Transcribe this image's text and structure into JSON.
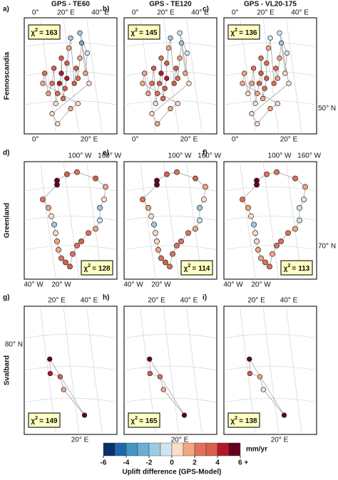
{
  "chi_symbol": "χ",
  "chi_power": "2",
  "chi_eq": "=",
  "rows": [
    {
      "label": "Fennoscandia",
      "lonlim": [
        -5,
        45
      ],
      "latlim": [
        50,
        73
      ],
      "top_ticks": [
        "0°",
        "20° E",
        "40° E"
      ],
      "bottom_ticks": [
        "0°",
        "20° E"
      ],
      "side_tick": "50° N",
      "stations": [
        [
          5,
          60
        ],
        [
          6,
          62
        ],
        [
          8,
          58
        ],
        [
          10,
          60
        ],
        [
          11,
          63
        ],
        [
          12,
          56
        ],
        [
          13,
          58
        ],
        [
          14,
          60
        ],
        [
          15,
          62
        ],
        [
          15,
          65
        ],
        [
          16,
          57
        ],
        [
          17,
          59
        ],
        [
          18,
          61
        ],
        [
          18,
          64
        ],
        [
          19,
          67
        ],
        [
          20,
          69
        ],
        [
          22,
          60
        ],
        [
          23,
          63
        ],
        [
          24,
          61
        ],
        [
          25,
          65
        ],
        [
          26,
          68
        ],
        [
          28,
          62
        ],
        [
          29,
          66
        ],
        [
          25,
          70
        ],
        [
          30,
          60
        ],
        [
          10,
          54
        ],
        [
          13,
          52
        ],
        [
          20,
          55
        ],
        [
          24,
          56
        ]
      ],
      "panels": [
        {
          "letter": "a)",
          "title": "GPS - TE60",
          "chi2": 163,
          "values": [
            1,
            2,
            1,
            2,
            3,
            0,
            2,
            4,
            4,
            3,
            2,
            3,
            4,
            3,
            1,
            -2,
            3,
            3,
            2,
            1,
            -3,
            1,
            -1,
            -2,
            0,
            0,
            0,
            1,
            0
          ]
        },
        {
          "letter": "b)",
          "title": "GPS - TE120",
          "chi2": 145,
          "values": [
            1,
            1,
            1,
            2,
            3,
            0,
            2,
            3,
            4,
            2,
            2,
            3,
            4,
            3,
            1,
            -2,
            3,
            3,
            2,
            1,
            -2,
            1,
            -1,
            -1,
            0,
            0,
            1,
            1,
            0
          ]
        },
        {
          "letter": "c)",
          "title": "GPS - VL20-175",
          "chi2": 136,
          "values": [
            1,
            1,
            0,
            1,
            2,
            0,
            1,
            3,
            3,
            2,
            1,
            2,
            3,
            2,
            1,
            -1,
            2,
            2,
            1,
            1,
            -2,
            0,
            -1,
            -1,
            0,
            0,
            0,
            1,
            0
          ]
        }
      ]
    },
    {
      "label": "Greenland",
      "lonlim": [
        -75,
        -10
      ],
      "latlim": [
        57,
        85
      ],
      "top_ticks": [
        "100° W",
        "160° W"
      ],
      "bottom_ticks": [
        "40° W",
        "20° W"
      ],
      "side_tick": "70° N",
      "stations": [
        [
          -43,
          60
        ],
        [
          -46,
          61
        ],
        [
          -49,
          62
        ],
        [
          -51,
          64
        ],
        [
          -52,
          66
        ],
        [
          -53,
          68
        ],
        [
          -54,
          70
        ],
        [
          -56,
          72
        ],
        [
          -58,
          74
        ],
        [
          -62,
          76
        ],
        [
          -52,
          79.5
        ],
        [
          -52,
          80.5
        ],
        [
          -45,
          82
        ],
        [
          -38,
          82.5
        ],
        [
          -25,
          81
        ],
        [
          -18,
          79
        ],
        [
          -19,
          76
        ],
        [
          -22,
          74
        ],
        [
          -22,
          71
        ],
        [
          -25,
          69
        ],
        [
          -30,
          68
        ],
        [
          -35,
          66
        ],
        [
          -38,
          65
        ],
        [
          -41,
          63
        ]
      ],
      "panels": [
        {
          "letter": "d)",
          "chi2": 128,
          "values": [
            3,
            3,
            2,
            1,
            1,
            0,
            -2,
            0,
            1,
            2,
            5,
            6,
            3,
            2,
            3,
            1,
            0,
            -2,
            -1,
            1,
            2,
            3,
            2,
            2
          ]
        },
        {
          "letter": "e)",
          "chi2": 114,
          "values": [
            2,
            3,
            2,
            1,
            0,
            0,
            -2,
            0,
            1,
            2,
            5,
            6,
            3,
            2,
            3,
            1,
            0,
            -2,
            -1,
            1,
            2,
            2,
            2,
            2
          ]
        },
        {
          "letter": "f)",
          "chi2": 113,
          "values": [
            2,
            2,
            1,
            1,
            0,
            0,
            -2,
            0,
            1,
            2,
            5,
            6,
            2,
            2,
            2,
            1,
            0,
            -1,
            -1,
            1,
            2,
            2,
            2,
            1
          ]
        }
      ]
    },
    {
      "label": "Svalbard",
      "lonlim": [
        5,
        45
      ],
      "latlim": [
        74,
        82
      ],
      "top_ticks": [
        "20° E",
        "40° E"
      ],
      "bottom_ticks": [
        "20° E"
      ],
      "side_tick": "80° N",
      "stations": [
        [
          16,
          78.7
        ],
        [
          16.2,
          77.8
        ],
        [
          20.5,
          77.6
        ],
        [
          22,
          76.8
        ],
        [
          31,
          75.2
        ]
      ],
      "panels": [
        {
          "letter": "g)",
          "chi2": 149,
          "values": [
            6,
            4,
            3,
            1,
            6
          ]
        },
        {
          "letter": "h)",
          "chi2": 165,
          "values": [
            6,
            3,
            2,
            1,
            6
          ]
        },
        {
          "letter": "i)",
          "chi2": 138,
          "values": [
            6,
            3,
            1,
            0,
            6
          ]
        }
      ]
    }
  ],
  "colorbar": {
    "colors": [
      "#08306b",
      "#2166ac",
      "#4393c3",
      "#6baed6",
      "#9ecae1",
      "#d1e5f0",
      "#fddbc7",
      "#f4a582",
      "#e0705a",
      "#d6604d",
      "#b2182b",
      "#67001f"
    ],
    "lim": [
      -6,
      6
    ],
    "ticks": [
      -6,
      -4,
      -2,
      0,
      2,
      4,
      {
        "value": 6,
        "label": "6 +"
      }
    ],
    "unit": "mm/yr",
    "title": "Uplift difference (GPS-Model)"
  }
}
